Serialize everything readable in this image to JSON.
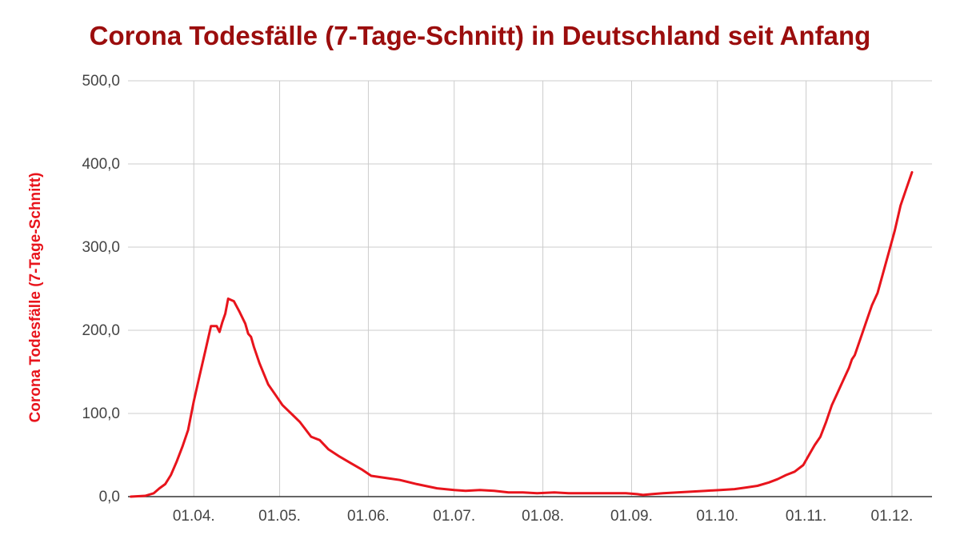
{
  "chart_data": {
    "type": "line",
    "title": "Corona Todesfälle (7-Tage-Schnitt) in Deutschland seit Anfang",
    "xlabel": "",
    "ylabel": "Corona Todesfälle (7-Tage-Schnitt)",
    "ylim": [
      0,
      500
    ],
    "y_ticks": [
      0,
      100,
      200,
      300,
      400,
      500
    ],
    "y_tick_labels": [
      "0,0",
      "100,0",
      "200,0",
      "300,0",
      "400,0",
      "500,0"
    ],
    "x_ticks": [
      "2020-04-01",
      "2020-05-01",
      "2020-06-01",
      "2020-07-01",
      "2020-08-01",
      "2020-09-01",
      "2020-10-01",
      "2020-11-01",
      "2020-12-01"
    ],
    "x_tick_labels": [
      "01.04.",
      "01.05.",
      "01.06.",
      "01.07.",
      "01.08.",
      "01.09.",
      "01.10.",
      "01.11.",
      "01.12."
    ],
    "xlim": [
      "2020-03-09",
      "2020-12-15"
    ],
    "grid": true,
    "colors": {
      "line": "#e8141c",
      "title": "#9b0d0d",
      "ylabel": "#e8141c",
      "grid": "#cccccc"
    },
    "series": [
      {
        "x": [
          "2020-03-10",
          "2020-03-15",
          "2020-03-18",
          "2020-03-20",
          "2020-03-22",
          "2020-03-24",
          "2020-03-26",
          "2020-03-28",
          "2020-03-30",
          "2020-04-01",
          "2020-04-03",
          "2020-04-05",
          "2020-04-07",
          "2020-04-09",
          "2020-04-10",
          "2020-04-11",
          "2020-04-12",
          "2020-04-13",
          "2020-04-15",
          "2020-04-17",
          "2020-04-19",
          "2020-04-20",
          "2020-04-21",
          "2020-04-22",
          "2020-04-24",
          "2020-04-27",
          "2020-04-30",
          "2020-05-02",
          "2020-05-05",
          "2020-05-08",
          "2020-05-12",
          "2020-05-15",
          "2020-05-18",
          "2020-05-22",
          "2020-05-26",
          "2020-05-30",
          "2020-06-02",
          "2020-06-08",
          "2020-06-12",
          "2020-06-18",
          "2020-06-25",
          "2020-07-01",
          "2020-07-05",
          "2020-07-10",
          "2020-07-15",
          "2020-07-20",
          "2020-07-25",
          "2020-07-30",
          "2020-08-05",
          "2020-08-10",
          "2020-08-15",
          "2020-08-20",
          "2020-08-25",
          "2020-08-30",
          "2020-09-03",
          "2020-09-05",
          "2020-09-08",
          "2020-09-12",
          "2020-09-17",
          "2020-09-22",
          "2020-09-27",
          "2020-10-02",
          "2020-10-07",
          "2020-10-11",
          "2020-10-15",
          "2020-10-19",
          "2020-10-22",
          "2020-10-25",
          "2020-10-28",
          "2020-10-31",
          "2020-11-02",
          "2020-11-04",
          "2020-11-06",
          "2020-11-08",
          "2020-11-10",
          "2020-11-12",
          "2020-11-14",
          "2020-11-16",
          "2020-11-17",
          "2020-11-18",
          "2020-11-20",
          "2020-11-22",
          "2020-11-24",
          "2020-11-26",
          "2020-11-28",
          "2020-11-30",
          "2020-12-02",
          "2020-12-04",
          "2020-12-06",
          "2020-12-08"
        ],
        "values": [
          0,
          1,
          4,
          10,
          15,
          26,
          42,
          60,
          80,
          115,
          145,
          175,
          205,
          205,
          198,
          210,
          220,
          238,
          235,
          222,
          208,
          196,
          192,
          180,
          160,
          135,
          120,
          110,
          100,
          90,
          72,
          68,
          57,
          48,
          40,
          32,
          25,
          22,
          20,
          15,
          10,
          8,
          7,
          8,
          7,
          5,
          5,
          4,
          5,
          4,
          4,
          4,
          4,
          4,
          3,
          2,
          3,
          4,
          5,
          6,
          7,
          8,
          9,
          11,
          13,
          17,
          21,
          26,
          30,
          38,
          50,
          62,
          72,
          90,
          110,
          125,
          140,
          155,
          165,
          170,
          190,
          210,
          230,
          245,
          270,
          295,
          320,
          350,
          370,
          390
        ]
      }
    ]
  }
}
